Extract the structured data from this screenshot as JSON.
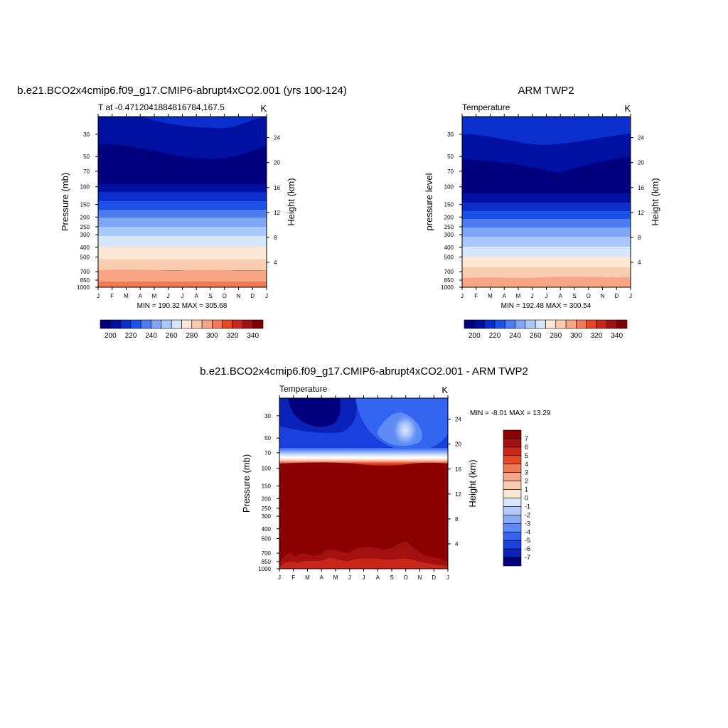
{
  "colors": {
    "abs_levels": [
      "#00007f",
      "#0010a0",
      "#0a2fcc",
      "#1c50e8",
      "#4b7cf0",
      "#7fa7f5",
      "#aac7fa",
      "#d6e6fb",
      "#fde6d4",
      "#fbcdb0",
      "#f6a585",
      "#f07a55",
      "#e64a25",
      "#c9261a",
      "#a31010",
      "#7f0000"
    ],
    "diff_levels": [
      "#00007f",
      "#0a22b8",
      "#1a40e0",
      "#3365f0",
      "#5e8cf5",
      "#88aaf7",
      "#b3cbfa",
      "#dbe8fc",
      "#fde6d4",
      "#fbcdb0",
      "#f6a585",
      "#f07a55",
      "#e64a25",
      "#c9261a",
      "#a31010",
      "#8b0000"
    ]
  },
  "panel1": {
    "title": "b.e21.BCO2x4cmip6.f09_g17.CMIP6-abrupt4xCO2.001 (yrs 100-124)",
    "subtitle_left": "T at -0.4712041884816784,167.5",
    "subtitle_right": "K",
    "ylabel": "Pressure (mb)",
    "ylabel_right": "Height (km)",
    "minmax": "MIN = 190.32 MAX = 305.68"
  },
  "panel2": {
    "title": "ARM TWP2",
    "subtitle_left": "Temperature",
    "subtitle_right": "K",
    "ylabel": "pressure level",
    "ylabel_right": "Height (km)",
    "minmax": "MIN = 192.48 MAX = 300.54"
  },
  "panel3": {
    "title": "b.e21.BCO2x4cmip6.f09_g17.CMIP6-abrupt4xCO2.001 - ARM TWP2",
    "subtitle_left": "Temperature",
    "subtitle_right": "K",
    "ylabel": "Pressure (mb)",
    "ylabel_right": "Height (km)",
    "minmax": "MIN =  -8.01 MAX =  13.29"
  },
  "chart_data": [
    {
      "type": "heatmap",
      "title": "b.e21.BCO2x4cmip6.f09_g17.CMIP6-abrupt4xCO2.001 (yrs 100-124)",
      "x_ticks": [
        "J",
        "F",
        "M",
        "A",
        "M",
        "J",
        "J",
        "A",
        "S",
        "O",
        "N",
        "D",
        "J"
      ],
      "y_ticks": [
        "30",
        "50",
        "70",
        "100",
        "150",
        "200",
        "250",
        "300",
        "400",
        "500",
        "700",
        "850",
        "1000"
      ],
      "y_scale": "log pressure",
      "y_right_ticks": [
        "24",
        "20",
        "16",
        "12",
        "8",
        "4"
      ],
      "bands_top_to_bottom": [
        {
          "upper_boundary_mb": 20,
          "color_index": 1
        },
        {
          "upper_boundary_mb": 48,
          "color_index": 0
        },
        {
          "upper_boundary_mb": 105,
          "color_index": 1
        },
        {
          "upper_boundary_mb": 135,
          "color_index": 2
        },
        {
          "upper_boundary_mb": 175,
          "color_index": 3
        },
        {
          "upper_boundary_mb": 225,
          "color_index": 4
        },
        {
          "upper_boundary_mb": 275,
          "color_index": 5
        },
        {
          "upper_boundary_mb": 330,
          "color_index": 6
        },
        {
          "upper_boundary_mb": 410,
          "color_index": 7
        },
        {
          "upper_boundary_mb": 550,
          "color_index": 8
        },
        {
          "upper_boundary_mb": 680,
          "color_index": 9
        },
        {
          "upper_boundary_mb": 900,
          "color_index": 10
        }
      ],
      "colorbar_labels": [
        "200",
        "220",
        "240",
        "260",
        "280",
        "300",
        "320",
        "340"
      ],
      "min": 190.32,
      "max": 305.68
    },
    {
      "type": "heatmap",
      "title": "ARM TWP2",
      "x_ticks": [
        "J",
        "F",
        "M",
        "A",
        "M",
        "J",
        "J",
        "A",
        "S",
        "O",
        "N",
        "D",
        "J"
      ],
      "y_ticks": [
        "30",
        "50",
        "70",
        "100",
        "150",
        "200",
        "250",
        "300",
        "400",
        "500",
        "700",
        "850",
        "1000"
      ],
      "y_scale": "log pressure",
      "y_right_ticks": [
        "24",
        "20",
        "16",
        "12",
        "8",
        "4"
      ],
      "bands_top_to_bottom": [
        {
          "upper_boundary_mb": 20,
          "color_index": 2
        },
        {
          "upper_boundary_mb": 38,
          "color_index": 1
        },
        {
          "upper_boundary_mb": 62,
          "color_index": 0
        },
        {
          "upper_boundary_mb": 130,
          "color_index": 1
        },
        {
          "upper_boundary_mb": 165,
          "color_index": 2
        },
        {
          "upper_boundary_mb": 210,
          "color_index": 3
        },
        {
          "upper_boundary_mb": 260,
          "color_index": 4
        },
        {
          "upper_boundary_mb": 300,
          "color_index": 5
        },
        {
          "upper_boundary_mb": 380,
          "color_index": 6
        },
        {
          "upper_boundary_mb": 500,
          "color_index": 7
        },
        {
          "upper_boundary_mb": 640,
          "color_index": 8
        },
        {
          "upper_boundary_mb": 800,
          "color_index": 9
        }
      ],
      "colorbar_labels": [
        "200",
        "220",
        "240",
        "260",
        "280",
        "300",
        "320",
        "340"
      ],
      "min": 192.48,
      "max": 300.54
    },
    {
      "type": "heatmap",
      "title": "b.e21.BCO2x4cmip6.f09_g17.CMIP6-abrupt4xCO2.001 - ARM TWP2",
      "x_ticks": [
        "J",
        "F",
        "M",
        "A",
        "M",
        "J",
        "J",
        "A",
        "S",
        "O",
        "N",
        "D",
        "J"
      ],
      "y_ticks": [
        "30",
        "50",
        "70",
        "100",
        "150",
        "200",
        "250",
        "300",
        "400",
        "500",
        "700",
        "850",
        "1000"
      ],
      "y_scale": "log pressure",
      "y_right_ticks": [
        "24",
        "20",
        "16",
        "12",
        "8",
        "4"
      ],
      "regions": [
        {
          "range_mb": [
            20,
            82
          ],
          "value_range": [
            -7,
            -3
          ],
          "note": "negative in stratosphere"
        },
        {
          "range_mb": [
            82,
            105
          ],
          "value_range": [
            -2,
            7
          ],
          "note": "sharp transition near tropopause"
        },
        {
          "range_mb": [
            105,
            1000
          ],
          "value": 7,
          "note": "> 7 throughout troposphere"
        }
      ],
      "colorbar_labels": [
        "7",
        "6",
        "5",
        "4",
        "3",
        "2",
        "1",
        "0",
        "-1",
        "-2",
        "-3",
        "-4",
        "-5",
        "-6",
        "-7"
      ],
      "min": -8.01,
      "max": 13.29
    }
  ]
}
